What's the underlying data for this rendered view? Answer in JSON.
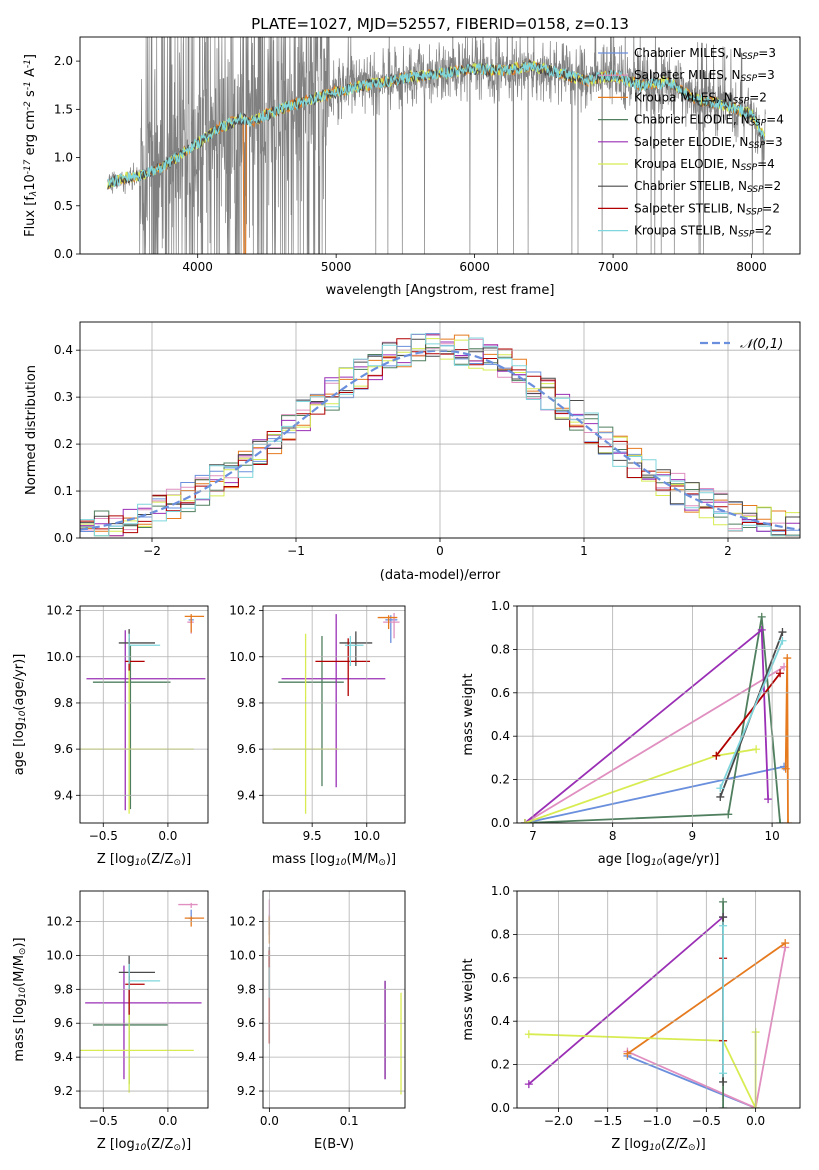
{
  "colors": {
    "c0": "#6a8fdd",
    "c1": "#e08fc0",
    "c2": "#e57a1f",
    "c3": "#4f7f5e",
    "c4": "#9a2fb5",
    "c5": "#d8ec52",
    "c6": "#4a4a4a",
    "c7": "#b00000",
    "c8": "#7fd6dc",
    "grid": "#b0b0b0",
    "spectrum_gray": "#808080"
  },
  "chart_data": [
    {
      "id": "spectrum",
      "type": "line",
      "title": "PLATE=1027, MJD=52557, FIBERID=0158, z=0.13",
      "xlabel": "wavelength [Angstrom, rest frame]",
      "ylabel": "Flux [f$_\\lambda$10$^{-17}$ erg cm$^{-2}$ s$^{-1}$ A$^{-1}$]",
      "xlim": [
        3150,
        8350
      ],
      "ylim": [
        0,
        2.25
      ],
      "xticks": [
        4000,
        5000,
        6000,
        7000,
        8000
      ],
      "yticks": [
        0.0,
        0.5,
        1.0,
        1.5,
        2.0
      ],
      "grid": false,
      "legend_position": "top-right",
      "legend": [
        {
          "label": "Chabrier MILES, N$_{SSP}$=3",
          "color": "c0"
        },
        {
          "label": "Salpeter MILES, N$_{SSP}$=3",
          "color": "c1"
        },
        {
          "label": "Kroupa MILES, N$_{SSP}$=2",
          "color": "c2"
        },
        {
          "label": "Chabrier ELODIE, N$_{SSP}$=4",
          "color": "c3"
        },
        {
          "label": "Salpeter ELODIE, N$_{SSP}$=3",
          "color": "c4"
        },
        {
          "label": "Kroupa ELODIE, N$_{SSP}$=4",
          "color": "c5"
        },
        {
          "label": "Chabrier STELIB, N$_{SSP}$=2",
          "color": "c6"
        },
        {
          "label": "Salpeter STELIB, N$_{SSP}$=2",
          "color": "c7"
        },
        {
          "label": "Kroupa STELIB, N$_{SSP}$=2",
          "color": "c8"
        }
      ],
      "continuum": {
        "x": [
          3350,
          3450,
          3600,
          3750,
          3900,
          4000,
          4150,
          4300,
          4400,
          4500,
          4700,
          4860,
          5000,
          5200,
          5400,
          5600,
          5800,
          6000,
          6200,
          6400,
          6600,
          6800,
          7000,
          7200,
          7400,
          7600,
          7800,
          8000,
          8100
        ],
        "y": [
          0.72,
          0.78,
          0.82,
          0.9,
          1.05,
          1.15,
          1.3,
          1.4,
          1.38,
          1.45,
          1.55,
          1.62,
          1.68,
          1.75,
          1.8,
          1.85,
          1.88,
          1.92,
          1.9,
          1.95,
          1.88,
          1.8,
          1.85,
          1.75,
          1.78,
          1.6,
          1.55,
          1.45,
          1.2
        ]
      }
    },
    {
      "id": "residuals",
      "type": "step",
      "xlabel": "(data-model)/error",
      "ylabel": "Normed distribution",
      "xlim": [
        -2.5,
        2.5
      ],
      "ylim": [
        0,
        0.46
      ],
      "xticks": [
        -2,
        -1,
        0,
        1,
        2
      ],
      "yticks": [
        0.0,
        0.1,
        0.2,
        0.3,
        0.4
      ],
      "grid": true,
      "legend_position": "top-right",
      "legend": [
        {
          "label": "$\\mathcal{N}(0,1)$",
          "color": "c0",
          "style": "dashed"
        }
      ],
      "reference": {
        "name": "$\\mathcal{N}(0,1)$",
        "mean": 0,
        "sigma": 1
      },
      "bin_width": 0.1
    },
    {
      "id": "age_vs_Z",
      "type": "scatter",
      "xlabel": "Z [log$_{10}$(Z/Z$_\\odot$)]",
      "ylabel": "age  [log$_{10}$(age/yr)]",
      "xlim": [
        -0.68,
        0.31
      ],
      "ylim": [
        9.28,
        10.22
      ],
      "xticks": [
        -0.5,
        0.0
      ],
      "yticks": [
        9.4,
        9.6,
        9.8,
        10.0,
        10.2
      ],
      "grid": true,
      "series": [
        {
          "color": "c0",
          "x": 0.18,
          "xerr": [
            0.02,
            0.02
          ],
          "y": 10.16,
          "yerr": [
            0.01,
            0.01
          ]
        },
        {
          "color": "c1",
          "x": 0.18,
          "xerr": [
            0.03,
            0.02
          ],
          "y": 10.15,
          "yerr": [
            0.05,
            0.02
          ]
        },
        {
          "color": "c2",
          "x": 0.18,
          "xerr": [
            0.05,
            0.1
          ],
          "y": 10.175,
          "yerr": [
            0.07,
            0.01
          ]
        },
        {
          "color": "c3",
          "x": -0.29,
          "xerr": [
            0.29,
            0.31
          ],
          "y": 9.89,
          "yerr": [
            0.55,
            0.16
          ]
        },
        {
          "color": "c4",
          "x": -0.33,
          "xerr": [
            0.3,
            0.62
          ],
          "y": 9.905,
          "yerr": [
            0.57,
            0.21
          ]
        },
        {
          "color": "c5",
          "x": -0.3,
          "xerr": [
            0.4,
            0.5
          ],
          "y": 9.6,
          "yerr": [
            0.28,
            0.5
          ]
        },
        {
          "color": "c6",
          "x": -0.3,
          "xerr": [
            0.08,
            0.2
          ],
          "y": 10.06,
          "yerr": [
            0.09,
            0.06
          ]
        },
        {
          "color": "c7",
          "x": -0.3,
          "xerr": [
            0.03,
            0.12
          ],
          "y": 9.98,
          "yerr": [
            0.04,
            0.1
          ]
        },
        {
          "color": "c8",
          "x": -0.3,
          "xerr": [
            0.0,
            0.24
          ],
          "y": 10.05,
          "yerr": [
            0.08,
            0.05
          ]
        }
      ]
    },
    {
      "id": "age_vs_mass",
      "type": "scatter",
      "xlabel": "mass [log$_{10}$(M/M$_\\odot$)]",
      "ylabel": "",
      "xlim": [
        9.05,
        10.35
      ],
      "ylim": [
        9.28,
        10.22
      ],
      "xticks": [
        9.5,
        10.0
      ],
      "yticks": [
        9.4,
        9.6,
        9.8,
        10.0,
        10.2
      ],
      "grid": true,
      "series": [
        {
          "color": "c0",
          "x": 10.22,
          "xerr": [
            0.05,
            0.06
          ],
          "y": 10.16,
          "yerr": [
            0.1,
            0.02
          ]
        },
        {
          "color": "c1",
          "x": 10.25,
          "xerr": [
            0.1,
            0.05
          ],
          "y": 10.15,
          "yerr": [
            0.07,
            0.04
          ]
        },
        {
          "color": "c2",
          "x": 10.2,
          "xerr": [
            0.1,
            0.08
          ],
          "y": 10.17,
          "yerr": [
            0.05,
            0.01
          ]
        },
        {
          "color": "c3",
          "x": 9.59,
          "xerr": [
            0.4,
            0.2
          ],
          "y": 9.89,
          "yerr": [
            0.45,
            0.2
          ]
        },
        {
          "color": "c4",
          "x": 9.72,
          "xerr": [
            0.5,
            0.45
          ],
          "y": 9.905,
          "yerr": [
            0.47,
            0.28
          ]
        },
        {
          "color": "c5",
          "x": 9.44,
          "xerr": [
            0.3,
            0.3
          ],
          "y": 9.6,
          "yerr": [
            0.28,
            0.5
          ]
        },
        {
          "color": "c6",
          "x": 9.9,
          "xerr": [
            0.15,
            0.15
          ],
          "y": 10.06,
          "yerr": [
            0.1,
            0.05
          ]
        },
        {
          "color": "c7",
          "x": 9.83,
          "xerr": [
            0.3,
            0.2
          ],
          "y": 9.98,
          "yerr": [
            0.15,
            0.1
          ]
        },
        {
          "color": "c8",
          "x": 9.85,
          "xerr": [
            0.05,
            0.12
          ],
          "y": 10.05,
          "yerr": [
            0.09,
            0.04
          ]
        }
      ]
    },
    {
      "id": "massweight_vs_age",
      "type": "line",
      "xlabel": "age  [log$_{10}$(age/yr)]",
      "ylabel": "mass weight",
      "xlim": [
        6.8,
        10.35
      ],
      "ylim": [
        0,
        1.0
      ],
      "xticks": [
        7,
        8,
        9,
        10
      ],
      "yticks": [
        0.0,
        0.2,
        0.4,
        0.6,
        0.8,
        1.0
      ],
      "grid": true,
      "series": [
        {
          "color": "c0",
          "x": [
            6.9,
            10.15
          ],
          "y": [
            0.0,
            0.26
          ]
        },
        {
          "color": "c1",
          "x": [
            6.9,
            10.15
          ],
          "y": [
            0.0,
            0.72
          ]
        },
        {
          "color": "c2",
          "x": [
            10.17,
            10.19,
            10.2
          ],
          "y": [
            0.25,
            0.76,
            0.0
          ]
        },
        {
          "color": "c3",
          "x": [
            6.9,
            9.45,
            9.87,
            10.1
          ],
          "y": [
            0.0,
            0.04,
            0.95,
            0.0
          ]
        },
        {
          "color": "c4",
          "x": [
            6.9,
            9.87,
            9.95
          ],
          "y": [
            0.0,
            0.89,
            0.11
          ]
        },
        {
          "color": "c5",
          "x": [
            6.9,
            9.3,
            9.8
          ],
          "y": [
            0.0,
            0.31,
            0.34
          ]
        },
        {
          "color": "c6",
          "x": [
            9.35,
            10.13
          ],
          "y": [
            0.12,
            0.88
          ]
        },
        {
          "color": "c7",
          "x": [
            9.3,
            10.1
          ],
          "y": [
            0.31,
            0.69
          ]
        },
        {
          "color": "c8",
          "x": [
            9.35,
            10.13
          ],
          "y": [
            0.16,
            0.84
          ]
        }
      ]
    },
    {
      "id": "mass_vs_Z",
      "type": "scatter",
      "xlabel": "Z [log$_{10}$(Z/Z$_\\odot$)]",
      "ylabel": "mass [log$_{10}$(M/M$_\\odot$)]",
      "xlim": [
        -0.68,
        0.31
      ],
      "ylim": [
        9.1,
        10.38
      ],
      "xticks": [
        -0.5,
        0.0
      ],
      "yticks": [
        9.2,
        9.4,
        9.6,
        9.8,
        10.0,
        10.2
      ],
      "grid": true,
      "series": [
        {
          "color": "c0",
          "x": 0.18,
          "xerr": [
            0.02,
            0.02
          ],
          "y": 10.22,
          "yerr": [
            0.02,
            0.05
          ]
        },
        {
          "color": "c1",
          "x": 0.18,
          "xerr": [
            0.1,
            0.05
          ],
          "y": 10.3,
          "yerr": [
            0.02,
            0.01
          ]
        },
        {
          "color": "c2",
          "x": 0.18,
          "xerr": [
            0.05,
            0.1
          ],
          "y": 10.22,
          "yerr": [
            0.05,
            0.01
          ]
        },
        {
          "color": "c3",
          "x": -0.3,
          "xerr": [
            0.28,
            0.3
          ],
          "y": 9.59,
          "yerr": [
            0.35,
            0.35
          ]
        },
        {
          "color": "c4",
          "x": -0.34,
          "xerr": [
            0.3,
            0.6
          ],
          "y": 9.72,
          "yerr": [
            0.45,
            0.22
          ]
        },
        {
          "color": "c5",
          "x": -0.3,
          "xerr": [
            0.4,
            0.5
          ],
          "y": 9.44,
          "yerr": [
            0.25,
            0.3
          ]
        },
        {
          "color": "c6",
          "x": -0.3,
          "xerr": [
            0.08,
            0.2
          ],
          "y": 9.9,
          "yerr": [
            0.1,
            0.1
          ]
        },
        {
          "color": "c7",
          "x": -0.3,
          "xerr": [
            0.03,
            0.12
          ],
          "y": 9.83,
          "yerr": [
            0.18,
            0.05
          ]
        },
        {
          "color": "c8",
          "x": -0.3,
          "xerr": [
            0.0,
            0.24
          ],
          "y": 9.85,
          "yerr": [
            0.05,
            0.1
          ]
        }
      ]
    },
    {
      "id": "mass_vs_ebv",
      "type": "scatter",
      "xlabel": "E(B-V)",
      "ylabel": "",
      "xlim": [
        -0.008,
        0.17
      ],
      "ylim": [
        9.1,
        10.38
      ],
      "xticks": [
        0.0,
        0.1
      ],
      "yticks": [
        9.2,
        9.4,
        9.6,
        9.8,
        10.0,
        10.2
      ],
      "grid": true,
      "series": [
        {
          "color": "c0",
          "x": 0.0,
          "y": 10.22,
          "yerr": [
            0.1,
            0.02
          ]
        },
        {
          "color": "c1",
          "x": 0.0,
          "y": 10.3,
          "yerr": [
            0.1,
            0.03
          ]
        },
        {
          "color": "c2",
          "x": 0.0,
          "y": 10.22,
          "yerr": [
            0.15,
            0.01
          ]
        },
        {
          "color": "c3",
          "x": 0.145,
          "y": 9.59,
          "yerr": [
            0.32,
            0.26
          ]
        },
        {
          "color": "c4",
          "x": 0.145,
          "y": 9.72,
          "yerr": [
            0.45,
            0.13
          ]
        },
        {
          "color": "c5",
          "x": 0.165,
          "y": 9.44,
          "yerr": [
            0.26,
            0.34
          ]
        },
        {
          "color": "c6",
          "x": 0.0,
          "y": 9.9,
          "yerr": [
            0.1,
            0.15
          ]
        },
        {
          "color": "c7",
          "x": 0.0,
          "y": 9.83,
          "yerr": [
            0.35,
            0.2
          ]
        },
        {
          "color": "c8",
          "x": 0.0,
          "y": 9.85,
          "yerr": [
            0.1,
            0.08
          ]
        }
      ]
    },
    {
      "id": "massweight_vs_Z",
      "type": "line",
      "xlabel": "Z [log$_{10}$(Z/Z$_\\odot$)]",
      "ylabel": "mass weight",
      "xlim": [
        -2.42,
        0.45
      ],
      "ylim": [
        0,
        1.0
      ],
      "xticks": [
        -2.0,
        -1.5,
        -1.0,
        -0.5,
        0.0
      ],
      "yticks": [
        0.0,
        0.2,
        0.4,
        0.6,
        0.8,
        1.0
      ],
      "grid": true,
      "series": [
        {
          "color": "c0",
          "x": [
            -1.3,
            0.0
          ],
          "y": [
            0.24,
            0.0
          ]
        },
        {
          "color": "c1",
          "x": [
            -1.3,
            0.0,
            0.3
          ],
          "y": [
            0.26,
            0.0,
            0.74
          ]
        },
        {
          "color": "c2",
          "x": [
            -1.3,
            0.3
          ],
          "y": [
            0.25,
            0.76
          ]
        },
        {
          "color": "c3",
          "x": [
            -0.33,
            -0.33
          ],
          "y": [
            0.95,
            0.0
          ]
        },
        {
          "color": "c4",
          "x": [
            -2.3,
            -0.33
          ],
          "y": [
            0.11,
            0.88
          ]
        },
        {
          "color": "c5",
          "x": [
            -2.3,
            -0.33,
            0.0,
            0.0
          ],
          "y": [
            0.34,
            0.31,
            0.0,
            0.35
          ]
        },
        {
          "color": "c6",
          "x": [
            -0.33,
            -0.33
          ],
          "y": [
            0.12,
            0.88
          ]
        },
        {
          "color": "c7",
          "x": [
            -0.33,
            -0.33
          ],
          "y": [
            0.31,
            0.69
          ]
        },
        {
          "color": "c8",
          "x": [
            -0.33,
            -0.33
          ],
          "y": [
            0.16,
            0.84
          ]
        }
      ]
    }
  ]
}
